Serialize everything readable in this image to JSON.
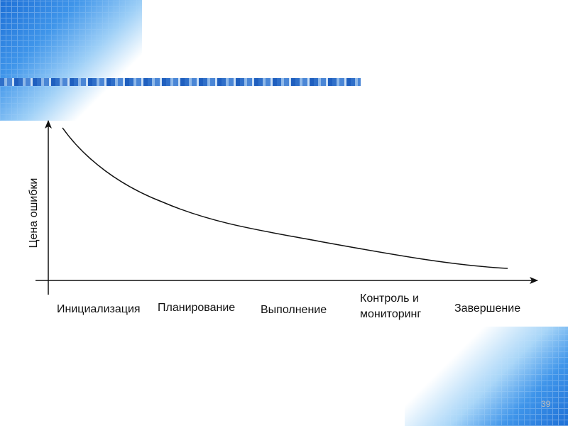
{
  "y_axis_label": "Цена ошибки",
  "phases": [
    "Инициализация",
    "Планирование",
    "Выполнение",
    "Контроль и мониторинг",
    "Завершение"
  ],
  "page_number": "39"
}
